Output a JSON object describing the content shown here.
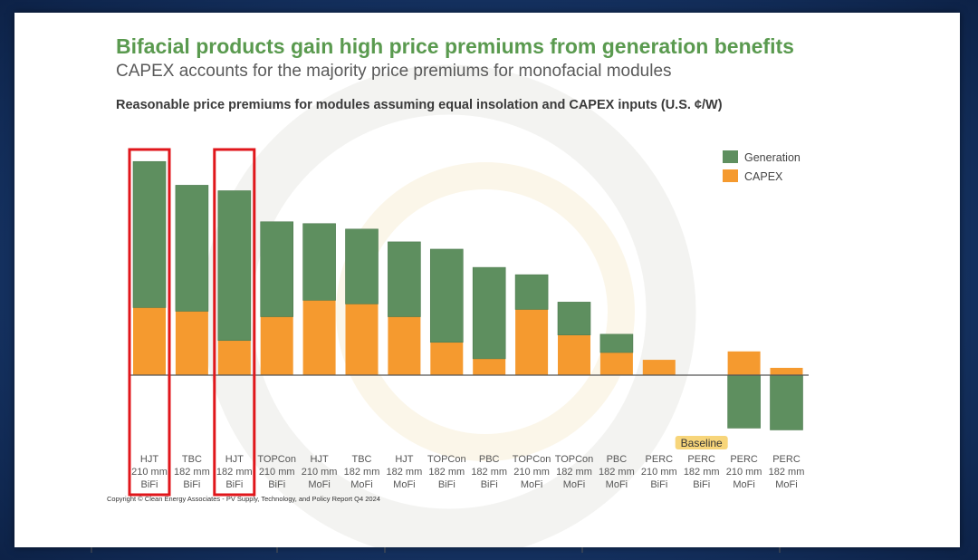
{
  "slide": {
    "title": "Bifacial products gain high price premiums from generation benefits",
    "subtitle": "CAPEX accounts for the majority price premiums for monofacial modules",
    "chart_title": "Reasonable price premiums for modules assuming equal insolation and CAPEX inputs (U.S. ¢/W)",
    "copyright": "Copyright © Clean Energy Associates - PV Supply, Technology, and Policy Report Q4 2024",
    "baseline_label": "Baseline"
  },
  "colors": {
    "generation": "#5e8f5f",
    "capex": "#f59a2f",
    "highlight": "#e0161b",
    "baseline_badge": "#f7d57a"
  },
  "chart_data": {
    "type": "bar",
    "stacked": true,
    "categories": [
      [
        "HJT",
        "210 mm",
        "BiFi"
      ],
      [
        "TBC",
        "182 mm",
        "BiFi"
      ],
      [
        "HJT",
        "182 mm",
        "BiFi"
      ],
      [
        "TOPCon",
        "210 mm",
        "BiFi"
      ],
      [
        "HJT",
        "210 mm",
        "MoFi"
      ],
      [
        "TBC",
        "182 mm",
        "MoFi"
      ],
      [
        "HJT",
        "182 mm",
        "MoFi"
      ],
      [
        "TOPCon",
        "182 mm",
        "BiFi"
      ],
      [
        "PBC",
        "182 mm",
        "BiFi"
      ],
      [
        "TOPCon",
        "210 mm",
        "MoFi"
      ],
      [
        "TOPCon",
        "182 mm",
        "MoFi"
      ],
      [
        "PBC",
        "182 mm",
        "MoFi"
      ],
      [
        "PERC",
        "210 mm",
        "BiFi"
      ],
      [
        "PERC",
        "182 mm",
        "BiFi"
      ],
      [
        "PERC",
        "210 mm",
        "MoFi"
      ],
      [
        "PERC",
        "182 mm",
        "MoFi"
      ]
    ],
    "series": [
      {
        "name": "Generation",
        "values": [
          4.0,
          3.45,
          4.1,
          2.6,
          2.1,
          2.05,
          2.05,
          2.55,
          2.5,
          0.95,
          0.9,
          0.5,
          0,
          0,
          -1.45,
          -1.5
        ]
      },
      {
        "name": "CAPEX",
        "values": [
          1.85,
          1.75,
          0.95,
          1.6,
          2.05,
          1.95,
          1.6,
          0.9,
          0.45,
          1.8,
          1.1,
          0.62,
          0.42,
          0,
          0.65,
          0.2
        ]
      }
    ],
    "highlighted": [
      0,
      2
    ],
    "baseline_index": 13,
    "ylim": [
      -1.6,
      6.1
    ],
    "legend_position": "top-right",
    "grid": false
  }
}
